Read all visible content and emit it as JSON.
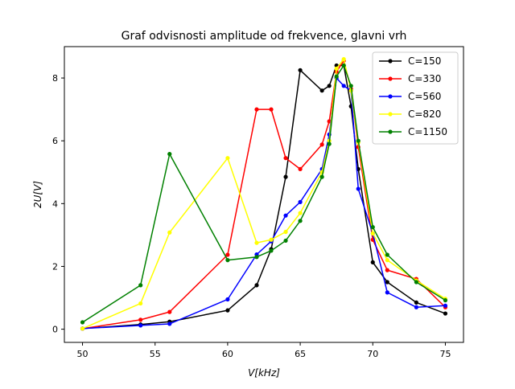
{
  "chart_data": {
    "type": "line",
    "title": "Graf odvisnosti amplitude od frekvence, glavni vrh",
    "xlabel": "V[kHz]",
    "ylabel": "2U[V]",
    "xlim": [
      48.75,
      76.25
    ],
    "ylim": [
      -0.42,
      9.0
    ],
    "xticks": [
      50,
      55,
      60,
      65,
      70,
      75
    ],
    "yticks": [
      0,
      2,
      4,
      6,
      8
    ],
    "grid": false,
    "legend_position": "top-right",
    "series": [
      {
        "name": "C=150",
        "color": "#000000",
        "x": [
          50,
          54,
          56,
          60,
          62,
          63,
          64,
          65,
          66.5,
          67,
          67.5,
          68,
          68.5,
          69,
          70,
          71,
          73,
          75
        ],
        "y": [
          0.02,
          0.15,
          0.24,
          0.6,
          1.4,
          2.55,
          4.85,
          8.25,
          7.6,
          7.75,
          8.4,
          8.4,
          7.1,
          5.1,
          2.13,
          1.5,
          0.85,
          0.5
        ]
      },
      {
        "name": "C=330",
        "color": "#ff0000",
        "x": [
          50,
          54,
          56,
          60,
          62,
          63,
          64,
          65,
          66.5,
          67,
          67.5,
          68,
          68.5,
          69,
          70,
          71,
          73,
          75
        ],
        "y": [
          0.02,
          0.3,
          0.55,
          2.37,
          7.0,
          7.0,
          5.45,
          5.1,
          5.88,
          6.62,
          8.2,
          8.55,
          7.65,
          5.8,
          2.85,
          1.88,
          1.6,
          0.7
        ]
      },
      {
        "name": "C=560",
        "color": "#0000ff",
        "x": [
          50,
          54,
          56,
          60,
          62,
          63,
          64,
          65,
          66.5,
          67,
          67.5,
          68,
          68.5,
          69,
          70,
          71,
          73,
          75
        ],
        "y": [
          0.02,
          0.12,
          0.17,
          0.95,
          2.38,
          2.8,
          3.62,
          4.05,
          5.1,
          6.2,
          8.0,
          7.75,
          7.6,
          4.47,
          3.05,
          1.17,
          0.7,
          0.75
        ]
      },
      {
        "name": "C=820",
        "color": "#ffff00",
        "x": [
          50,
          54,
          56,
          60,
          62,
          63,
          64,
          65,
          66.5,
          67,
          67.5,
          68,
          68.5,
          69,
          70,
          71,
          73,
          75
        ],
        "y": [
          0.02,
          0.82,
          3.08,
          5.45,
          2.75,
          2.85,
          3.1,
          3.7,
          5.0,
          6.0,
          8.3,
          8.6,
          7.6,
          5.95,
          3.05,
          2.2,
          1.55,
          0.97
        ]
      },
      {
        "name": "C=1150",
        "color": "#008000",
        "x": [
          50,
          54,
          56,
          60,
          62,
          63,
          64,
          65,
          66.5,
          67,
          67.5,
          68,
          68.5,
          69,
          70,
          71,
          73,
          75
        ],
        "y": [
          0.22,
          1.4,
          5.58,
          2.2,
          2.3,
          2.5,
          2.82,
          3.45,
          4.85,
          5.9,
          8.05,
          8.4,
          7.75,
          6.0,
          3.25,
          2.37,
          1.5,
          0.92
        ]
      }
    ]
  }
}
